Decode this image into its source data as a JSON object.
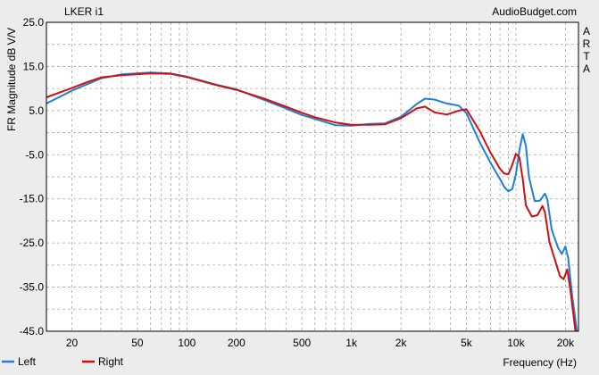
{
  "chart_data": {
    "type": "line",
    "title": "LKER i1",
    "watermark": "AudioBudget.com",
    "side_label": "ARTA",
    "xlabel": "Frequency (Hz)",
    "ylabel": "FR Magnitude dB V/V",
    "x_scale": "log",
    "xlim": [
      14,
      24000
    ],
    "ylim": [
      -45,
      25
    ],
    "grid": true,
    "legend_position": "bottom-left",
    "x_ticks": [
      {
        "value": 20,
        "label": "20"
      },
      {
        "value": 50,
        "label": "50"
      },
      {
        "value": 100,
        "label": "100"
      },
      {
        "value": 200,
        "label": "200"
      },
      {
        "value": 500,
        "label": "500"
      },
      {
        "value": 1000,
        "label": "1k"
      },
      {
        "value": 2000,
        "label": "2k"
      },
      {
        "value": 5000,
        "label": "5k"
      },
      {
        "value": 10000,
        "label": "10k"
      },
      {
        "value": 20000,
        "label": "20k"
      }
    ],
    "y_ticks": [
      {
        "value": 25,
        "label": "25.0"
      },
      {
        "value": 15,
        "label": "15.0"
      },
      {
        "value": 5,
        "label": "5.0"
      },
      {
        "value": -5,
        "label": "-5.0"
      },
      {
        "value": -15,
        "label": "-15.0"
      },
      {
        "value": -25,
        "label": "-25.0"
      },
      {
        "value": -35,
        "label": "-35.0"
      },
      {
        "value": -45,
        "label": "-45.0"
      }
    ],
    "series": [
      {
        "name": "Left",
        "color": "#1f7fd6",
        "points": [
          [
            14,
            6.6
          ],
          [
            20,
            9.5
          ],
          [
            30,
            12.3
          ],
          [
            40,
            13.2
          ],
          [
            60,
            13.6
          ],
          [
            80,
            13.4
          ],
          [
            100,
            12.7
          ],
          [
            150,
            10.9
          ],
          [
            200,
            9.8
          ],
          [
            300,
            7.3
          ],
          [
            400,
            5.5
          ],
          [
            500,
            4.0
          ],
          [
            600,
            3.1
          ],
          [
            800,
            1.7
          ],
          [
            1000,
            1.6
          ],
          [
            1300,
            2.0
          ],
          [
            1600,
            2.1
          ],
          [
            2000,
            3.6
          ],
          [
            2500,
            6.5
          ],
          [
            2800,
            7.7
          ],
          [
            3200,
            7.5
          ],
          [
            3800,
            6.6
          ],
          [
            4500,
            6.1
          ],
          [
            5000,
            4.4
          ],
          [
            6000,
            -2.0
          ],
          [
            7000,
            -6.8
          ],
          [
            8000,
            -10.5
          ],
          [
            8500,
            -12.3
          ],
          [
            9000,
            -13.3
          ],
          [
            9500,
            -12.8
          ],
          [
            10000,
            -9.5
          ],
          [
            10500,
            -4.0
          ],
          [
            11000,
            -0.3
          ],
          [
            11500,
            -3.0
          ],
          [
            12000,
            -10.0
          ],
          [
            13000,
            -15.5
          ],
          [
            14000,
            -15.4
          ],
          [
            15000,
            -13.8
          ],
          [
            15500,
            -15.0
          ],
          [
            16500,
            -22.0
          ],
          [
            18000,
            -26.0
          ],
          [
            19000,
            -27.5
          ],
          [
            20000,
            -25.8
          ],
          [
            20800,
            -28.5
          ],
          [
            22000,
            -37.0
          ],
          [
            23500,
            -45.0
          ]
        ]
      },
      {
        "name": "Right",
        "color": "#d01010",
        "points": [
          [
            14,
            8.0
          ],
          [
            20,
            10.1
          ],
          [
            25,
            11.5
          ],
          [
            30,
            12.5
          ],
          [
            40,
            13.0
          ],
          [
            60,
            13.4
          ],
          [
            80,
            13.3
          ],
          [
            100,
            12.6
          ],
          [
            150,
            10.8
          ],
          [
            200,
            9.7
          ],
          [
            300,
            7.6
          ],
          [
            400,
            5.9
          ],
          [
            500,
            4.5
          ],
          [
            600,
            3.5
          ],
          [
            800,
            2.3
          ],
          [
            1000,
            1.8
          ],
          [
            1300,
            1.8
          ],
          [
            1600,
            1.9
          ],
          [
            2000,
            3.3
          ],
          [
            2500,
            5.5
          ],
          [
            2800,
            5.9
          ],
          [
            3200,
            4.6
          ],
          [
            3800,
            4.1
          ],
          [
            4500,
            5.0
          ],
          [
            5000,
            5.3
          ],
          [
            6000,
            0.5
          ],
          [
            7000,
            -4.5
          ],
          [
            8000,
            -8.2
          ],
          [
            8500,
            -9.3
          ],
          [
            9000,
            -9.4
          ],
          [
            9500,
            -7.3
          ],
          [
            10000,
            -4.8
          ],
          [
            10500,
            -5.6
          ],
          [
            11000,
            -10.5
          ],
          [
            11500,
            -16.5
          ],
          [
            12500,
            -19.0
          ],
          [
            13500,
            -18.7
          ],
          [
            14500,
            -16.6
          ],
          [
            15000,
            -18.0
          ],
          [
            16000,
            -24.8
          ],
          [
            17500,
            -29.5
          ],
          [
            18500,
            -32.5
          ],
          [
            19500,
            -33.2
          ],
          [
            20500,
            -31.0
          ],
          [
            21500,
            -36.0
          ],
          [
            23000,
            -45.0
          ]
        ]
      }
    ]
  }
}
